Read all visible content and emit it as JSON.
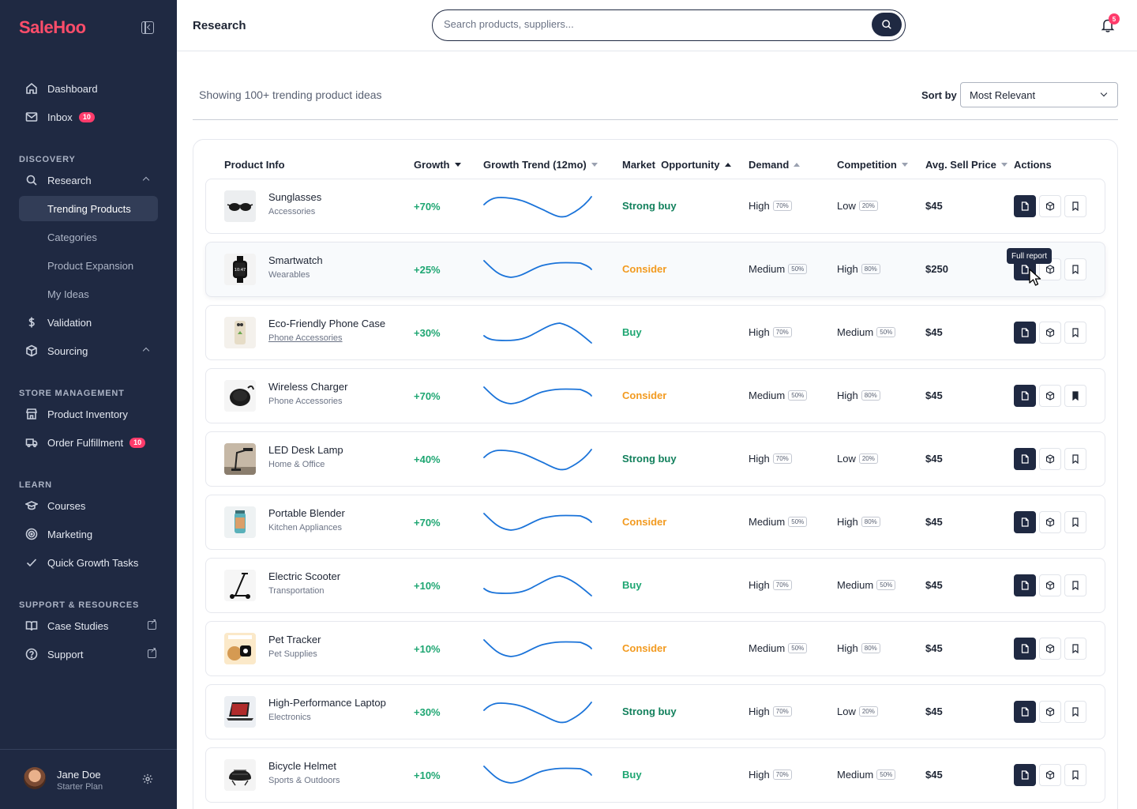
{
  "app": {
    "logo": "SaleHoo"
  },
  "sidebar": {
    "main": [
      {
        "label": "Dashboard"
      },
      {
        "label": "Inbox",
        "badge": "10"
      }
    ],
    "discovery_label": "DISCOVERY",
    "research": {
      "label": "Research",
      "children": [
        "Trending Products",
        "Categories",
        "Product Expansion",
        "My Ideas"
      ],
      "active": "Trending Products"
    },
    "validation": "Validation",
    "sourcing": "Sourcing",
    "store_label": "STORE MANAGEMENT",
    "store": [
      {
        "label": "Product Inventory"
      },
      {
        "label": "Order Fulfillment",
        "badge": "10"
      }
    ],
    "learn_label": "LEARN",
    "learn": [
      {
        "label": "Courses"
      },
      {
        "label": "Marketing"
      },
      {
        "label": "Quick Growth Tasks"
      }
    ],
    "support_label": "SUPPORT & RESOURCES",
    "support": [
      {
        "label": "Case Studies"
      },
      {
        "label": "Support"
      }
    ],
    "user": {
      "name": "Jane Doe",
      "plan": "Starter Plan"
    }
  },
  "header": {
    "title": "Research",
    "search_placeholder": "Search products, suppliers...",
    "notifications": "5"
  },
  "toolbar": {
    "showing": "Showing 100+ trending product ideas",
    "sort_label": "Sort by",
    "sort_value": "Most Relevant"
  },
  "table": {
    "columns": [
      "Product Info",
      "Growth",
      "Growth Trend (12mo)",
      "Market  Opportunity",
      "Demand",
      "Competition",
      "Avg. Sell Price",
      "Actions"
    ],
    "rows": [
      {
        "name": "Sunglasses",
        "category": "Accessories",
        "growth": "+70%",
        "trend": "A",
        "opportunity": "Strong buy",
        "demand": "High",
        "demand_pct": "70%",
        "competition": "Low",
        "competition_pct": "20%",
        "price": "$45",
        "saved": false
      },
      {
        "name": "Smartwatch",
        "category": "Wearables",
        "growth": "+25%",
        "trend": "B",
        "opportunity": "Consider",
        "demand": "Medium",
        "demand_pct": "50%",
        "competition": "High",
        "competition_pct": "80%",
        "price": "$250",
        "saved": false
      },
      {
        "name": "Eco-Friendly Phone Case",
        "category": "Phone Accessories",
        "growth": "+30%",
        "trend": "C",
        "opportunity": "Buy",
        "demand": "High",
        "demand_pct": "70%",
        "competition": "Medium",
        "competition_pct": "50%",
        "price": "$45",
        "saved": false
      },
      {
        "name": "Wireless Charger",
        "category": "Phone Accessories",
        "growth": "+70%",
        "trend": "B",
        "opportunity": "Consider",
        "demand": "Medium",
        "demand_pct": "50%",
        "competition": "High",
        "competition_pct": "80%",
        "price": "$45",
        "saved": true
      },
      {
        "name": "LED Desk Lamp",
        "category": "Home & Office",
        "growth": "+40%",
        "trend": "A",
        "opportunity": "Strong buy",
        "demand": "High",
        "demand_pct": "70%",
        "competition": "Low",
        "competition_pct": "20%",
        "price": "$45",
        "saved": false
      },
      {
        "name": "Portable Blender",
        "category": "Kitchen Appliances",
        "growth": "+70%",
        "trend": "B",
        "opportunity": "Consider",
        "demand": "Medium",
        "demand_pct": "50%",
        "competition": "High",
        "competition_pct": "80%",
        "price": "$45",
        "saved": false
      },
      {
        "name": "Electric Scooter",
        "category": "Transportation",
        "growth": "+10%",
        "trend": "C",
        "opportunity": "Buy",
        "demand": "High",
        "demand_pct": "70%",
        "competition": "Medium",
        "competition_pct": "50%",
        "price": "$45",
        "saved": false
      },
      {
        "name": "Pet Tracker",
        "category": "Pet Supplies",
        "growth": "+10%",
        "trend": "B",
        "opportunity": "Consider",
        "demand": "Medium",
        "demand_pct": "50%",
        "competition": "High",
        "competition_pct": "80%",
        "price": "$45",
        "saved": false
      },
      {
        "name": "High-Performance Laptop",
        "category": "Electronics",
        "growth": "+30%",
        "trend": "A",
        "opportunity": "Strong buy",
        "demand": "High",
        "demand_pct": "70%",
        "competition": "Low",
        "competition_pct": "20%",
        "price": "$45",
        "saved": false
      },
      {
        "name": "Bicycle Helmet",
        "category": "Sports & Outdoors",
        "growth": "+10%",
        "trend": "B",
        "opportunity": "Buy",
        "demand": "High",
        "demand_pct": "70%",
        "competition": "Medium",
        "competition_pct": "50%",
        "price": "$45",
        "saved": false
      }
    ],
    "tooltip": "Full report"
  },
  "colors": {
    "sidebar_bg": "#1f2942",
    "brand": "#ff4d6a",
    "growth_green": "#1ea672",
    "strong_buy": "#12805c",
    "buy": "#1ea672",
    "consider": "#f29a1f",
    "trend_line": "#1a73d9"
  },
  "icons": [
    "home-icon",
    "mail-icon",
    "search-icon",
    "dollar-icon",
    "cube-icon",
    "store-icon",
    "truck-icon",
    "graduation-cap-icon",
    "target-icon",
    "check-icon",
    "book-icon",
    "help-icon",
    "bell-icon",
    "gear-icon",
    "document-icon",
    "box-icon",
    "bookmark-icon"
  ]
}
